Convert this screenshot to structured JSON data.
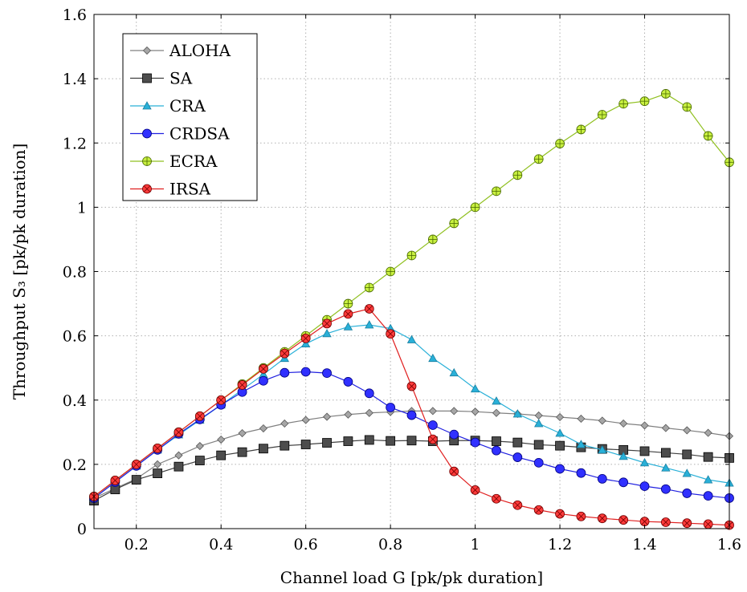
{
  "chart_data": {
    "type": "line",
    "xlabel": "Channel load G [pk/pk duration]",
    "ylabel": "Throughput S₃ [pk/pk duration]",
    "xlim": [
      0.1,
      1.6
    ],
    "ylim": [
      0,
      1.6
    ],
    "x_ticks": [
      "0.2",
      "0.4",
      "0.6",
      "0.8",
      "1",
      "1.2",
      "1.4",
      "1.6"
    ],
    "y_ticks": [
      "0",
      "0.2",
      "0.4",
      "0.6",
      "0.8",
      "1",
      "1.2",
      "1.4",
      "1.6"
    ],
    "grid": true,
    "legend_position": "top-left",
    "x": [
      0.1,
      0.15,
      0.2,
      0.25,
      0.3,
      0.35,
      0.4,
      0.45,
      0.5,
      0.55,
      0.6,
      0.65,
      0.7,
      0.75,
      0.8,
      0.85,
      0.9,
      0.95,
      1.0,
      1.05,
      1.1,
      1.15,
      1.2,
      1.25,
      1.3,
      1.35,
      1.4,
      1.45,
      1.5,
      1.55,
      1.6
    ],
    "series": [
      {
        "name": "ALOHA",
        "color": "#808080",
        "marker": "diamond",
        "values": [
          0.095,
          0.125,
          0.155,
          0.2,
          0.228,
          0.257,
          0.277,
          0.297,
          0.312,
          0.327,
          0.338,
          0.348,
          0.355,
          0.36,
          0.363,
          0.366,
          0.366,
          0.366,
          0.364,
          0.36,
          0.357,
          0.352,
          0.347,
          0.342,
          0.336,
          0.327,
          0.321,
          0.313,
          0.306,
          0.298,
          0.288
        ]
      },
      {
        "name": "SA",
        "color": "#404040",
        "marker": "square",
        "values": [
          0.087,
          0.122,
          0.152,
          0.172,
          0.193,
          0.212,
          0.228,
          0.238,
          0.249,
          0.258,
          0.262,
          0.267,
          0.272,
          0.276,
          0.273,
          0.274,
          0.272,
          0.274,
          0.274,
          0.272,
          0.268,
          0.261,
          0.258,
          0.253,
          0.248,
          0.245,
          0.241,
          0.236,
          0.231,
          0.223,
          0.22
        ]
      },
      {
        "name": "CRA",
        "color": "#29b0d8",
        "marker": "triangle",
        "values": [
          0.095,
          0.145,
          0.195,
          0.245,
          0.292,
          0.338,
          0.385,
          0.432,
          0.48,
          0.53,
          0.575,
          0.607,
          0.628,
          0.634,
          0.623,
          0.588,
          0.53,
          0.485,
          0.435,
          0.397,
          0.357,
          0.327,
          0.297,
          0.262,
          0.245,
          0.225,
          0.205,
          0.189,
          0.172,
          0.152,
          0.142
        ]
      },
      {
        "name": "CRDSA",
        "color": "#2020e0",
        "marker": "circle",
        "values": [
          0.095,
          0.145,
          0.195,
          0.245,
          0.295,
          0.34,
          0.385,
          0.425,
          0.46,
          0.485,
          0.488,
          0.484,
          0.457,
          0.421,
          0.377,
          0.353,
          0.322,
          0.293,
          0.268,
          0.243,
          0.222,
          0.205,
          0.186,
          0.173,
          0.155,
          0.144,
          0.132,
          0.123,
          0.11,
          0.102,
          0.095
        ]
      },
      {
        "name": "ECRA",
        "color": "#90c020",
        "marker": "oplus",
        "values": [
          0.1,
          0.15,
          0.2,
          0.25,
          0.3,
          0.35,
          0.4,
          0.45,
          0.5,
          0.55,
          0.6,
          0.65,
          0.7,
          0.75,
          0.8,
          0.85,
          0.9,
          0.95,
          1.0,
          1.05,
          1.1,
          1.15,
          1.198,
          1.242,
          1.288,
          1.322,
          1.33,
          1.353,
          1.312,
          1.222,
          1.14
        ]
      },
      {
        "name": "IRSA",
        "color": "#e02020",
        "marker": "otimes",
        "values": [
          0.1,
          0.15,
          0.2,
          0.25,
          0.3,
          0.35,
          0.4,
          0.447,
          0.497,
          0.545,
          0.592,
          0.638,
          0.668,
          0.684,
          0.606,
          0.443,
          0.278,
          0.178,
          0.12,
          0.093,
          0.073,
          0.058,
          0.046,
          0.038,
          0.032,
          0.027,
          0.022,
          0.02,
          0.017,
          0.014,
          0.011
        ]
      }
    ]
  }
}
